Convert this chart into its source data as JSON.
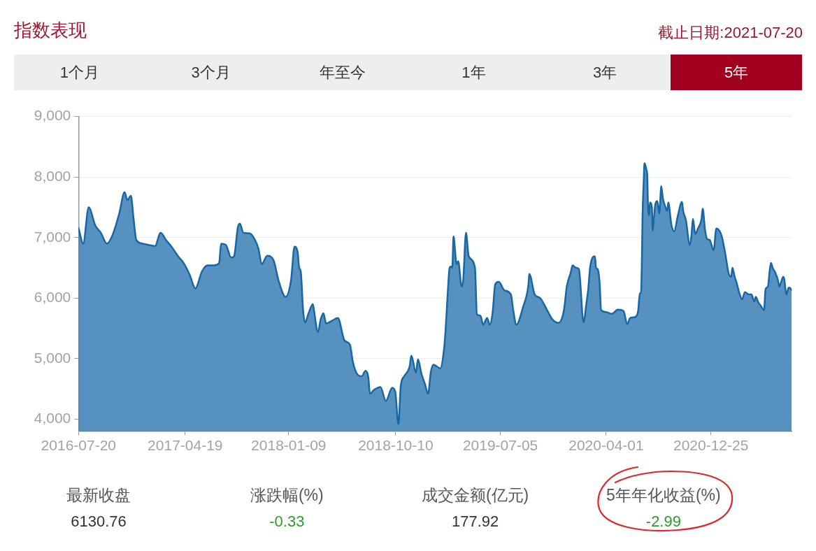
{
  "chart_data": [
    {
      "type": "area",
      "title": "指数表现",
      "annotations": [
        "截止日期:2021-07-20",
        "1个月",
        "3个月",
        "年至今",
        "1年",
        "3年",
        "5年"
      ],
      "x": [
        "2016-07-20",
        "2016-08-01",
        "2016-08-15",
        "2016-09-01",
        "2016-09-15",
        "2016-10-01",
        "2016-10-15",
        "2016-11-01",
        "2016-11-15",
        "2016-11-22",
        "2016-12-01",
        "2016-12-08",
        "2016-12-15",
        "2017-01-01",
        "2017-01-15",
        "2017-02-01",
        "2017-02-15",
        "2017-03-01",
        "2017-03-15",
        "2017-04-01",
        "2017-04-15",
        "2017-05-01",
        "2017-05-15",
        "2017-06-01",
        "2017-06-15",
        "2017-07-01",
        "2017-07-15",
        "2017-07-20",
        "2017-08-01",
        "2017-08-15",
        "2017-08-22",
        "2017-09-01",
        "2017-09-06",
        "2017-09-15",
        "2017-10-01",
        "2017-10-15",
        "2017-10-24",
        "2017-11-01",
        "2017-11-15",
        "2017-12-01",
        "2017-12-15",
        "2018-01-01",
        "2018-01-15",
        "2018-01-24",
        "2018-02-01",
        "2018-02-05",
        "2018-02-09",
        "2018-02-15",
        "2018-02-20",
        "2018-03-01",
        "2018-03-12",
        "2018-03-15",
        "2018-03-25",
        "2018-04-01",
        "2018-04-08",
        "2018-04-15",
        "2018-05-01",
        "2018-05-15",
        "2018-06-01",
        "2018-06-15",
        "2018-06-22",
        "2018-07-01",
        "2018-07-15",
        "2018-07-25",
        "2018-08-01",
        "2018-08-05",
        "2018-08-15",
        "2018-09-01",
        "2018-09-15",
        "2018-10-01",
        "2018-10-09",
        "2018-10-17",
        "2018-10-23",
        "2018-11-01",
        "2018-11-15",
        "2018-11-19",
        "2018-12-01",
        "2018-12-06",
        "2018-12-15",
        "2018-12-24",
        "2019-01-01",
        "2019-01-08",
        "2019-01-15",
        "2019-02-01",
        "2019-02-11",
        "2019-02-15",
        "2019-02-22",
        "2019-02-25",
        "2019-03-01",
        "2019-03-04",
        "2019-03-07",
        "2019-03-15",
        "2019-03-19",
        "2019-03-28",
        "2019-04-01",
        "2019-04-08",
        "2019-04-15",
        "2019-05-01",
        "2019-05-06",
        "2019-05-15",
        "2019-05-22",
        "2019-06-01",
        "2019-06-08",
        "2019-06-15",
        "2019-06-22",
        "2019-07-01",
        "2019-07-15",
        "2019-08-01",
        "2019-08-07",
        "2019-08-15",
        "2019-09-01",
        "2019-09-15",
        "2019-09-17",
        "2019-10-01",
        "2019-10-15",
        "2019-11-01",
        "2019-11-15",
        "2019-12-01",
        "2019-12-15",
        "2019-12-22",
        "2020-01-01",
        "2020-01-06",
        "2020-01-15",
        "2020-01-22",
        "2020-02-03",
        "2020-02-10",
        "2020-02-15",
        "2020-02-20",
        "2020-03-03",
        "2020-03-06",
        "2020-03-10",
        "2020-03-15",
        "2020-03-19",
        "2020-04-01",
        "2020-04-15",
        "2020-05-01",
        "2020-05-15",
        "2020-05-25",
        "2020-06-01",
        "2020-06-15",
        "2020-06-22",
        "2020-06-26",
        "2020-06-29",
        "2020-07-01",
        "2020-07-03",
        "2020-07-06",
        "2020-07-08",
        "2020-07-13",
        "2020-07-15",
        "2020-07-17",
        "2020-07-20",
        "2020-07-22",
        "2020-07-27",
        "2020-07-29",
        "2020-08-01",
        "2020-08-05",
        "2020-08-10",
        "2020-08-15",
        "2020-08-20",
        "2020-08-24",
        "2020-09-01",
        "2020-09-04",
        "2020-09-07",
        "2020-09-15",
        "2020-09-22",
        "2020-10-01",
        "2020-10-12",
        "2020-10-15",
        "2020-10-22",
        "2020-11-01",
        "2020-11-05",
        "2020-11-09",
        "2020-11-15",
        "2020-11-22",
        "2020-12-01",
        "2020-12-04",
        "2020-12-10",
        "2020-12-15",
        "2020-12-22",
        "2021-01-01",
        "2021-01-08",
        "2021-01-15",
        "2021-01-22",
        "2021-02-01",
        "2021-02-08",
        "2021-02-15",
        "2021-02-18",
        "2021-02-24",
        "2021-03-01",
        "2021-03-08",
        "2021-03-15",
        "2021-03-22",
        "2021-04-01",
        "2021-04-08",
        "2021-04-15",
        "2021-04-19",
        "2021-04-26",
        "2021-05-01",
        "2021-05-07",
        "2021-05-10",
        "2021-05-14",
        "2021-05-20",
        "2021-05-25",
        "2021-05-28",
        "2021-06-01",
        "2021-06-08",
        "2021-06-15",
        "2021-06-18",
        "2021-06-23",
        "2021-06-28",
        "2021-07-01",
        "2021-07-06",
        "2021-07-12",
        "2021-07-15",
        "2021-07-20"
      ],
      "values": [
        7160,
        6900,
        7500,
        7200,
        7080,
        6900,
        7040,
        7390,
        7750,
        7620,
        7690,
        7310,
        6960,
        6900,
        6880,
        6860,
        7080,
        6960,
        6850,
        6690,
        6580,
        6380,
        6160,
        6440,
        6540,
        6540,
        6580,
        6900,
        6880,
        6670,
        6690,
        7170,
        7230,
        7080,
        7070,
        6960,
        6810,
        6560,
        6700,
        6630,
        6270,
        6020,
        6290,
        6850,
        6760,
        6500,
        6440,
        5800,
        5600,
        5750,
        5900,
        5790,
        5440,
        5650,
        5750,
        5580,
        5630,
        5670,
        5300,
        5230,
        4960,
        4770,
        4710,
        4800,
        4690,
        4420,
        4480,
        4530,
        4300,
        4520,
        4450,
        3920,
        4550,
        4710,
        4880,
        5050,
        4770,
        4990,
        4750,
        4580,
        4420,
        4780,
        4900,
        4840,
        5170,
        5500,
        6270,
        6500,
        6520,
        6500,
        7020,
        6560,
        6610,
        6190,
        6300,
        7080,
        6690,
        6500,
        5730,
        5710,
        5560,
        5670,
        5560,
        5750,
        6230,
        6270,
        6130,
        6060,
        5800,
        5560,
        5850,
        6230,
        6400,
        6060,
        6000,
        5810,
        5650,
        5590,
        5810,
        6190,
        6420,
        6540,
        6500,
        6480,
        5600,
        5900,
        6150,
        6520,
        6690,
        6500,
        6480,
        6270,
        5800,
        5770,
        5740,
        5810,
        5790,
        5570,
        5670,
        5690,
        5800,
        6080,
        6080,
        6500,
        7350,
        7920,
        8230,
        8120,
        8040,
        7540,
        7370,
        7580,
        7500,
        7120,
        7310,
        7560,
        7600,
        7400,
        7850,
        7650,
        7480,
        7440,
        7580,
        7210,
        7100,
        7350,
        7590,
        7440,
        7290,
        6880,
        7020,
        7310,
        7060,
        7150,
        7310,
        7480,
        7130,
        6980,
        6960,
        6790,
        7150,
        7120,
        7020,
        6690,
        6420,
        6350,
        6500,
        6350,
        6250,
        6080,
        5980,
        6100,
        6060,
        6060,
        5940,
        6020,
        5920,
        5880,
        5820,
        5800,
        6150,
        6190,
        6480,
        6580,
        6500,
        6420,
        6290,
        6190,
        6270,
        6350,
        6310,
        6060,
        6170,
        6170,
        6130
      ],
      "color": "#1667a6",
      "xlim": [
        "2016-07-20",
        "2021-07-20"
      ],
      "xticks": [
        "2016-07-20",
        "2017-04-19",
        "2018-01-09",
        "2018-10-10",
        "2019-07-05",
        "2020-04-01",
        "2020-12-25"
      ],
      "ylim": [
        3800,
        9000
      ],
      "yticks": [
        {
          "value": 4000,
          "label": "4,000"
        },
        {
          "value": 5000,
          "label": "5,000"
        },
        {
          "value": 6000,
          "label": "6,000"
        },
        {
          "value": 7000,
          "label": "7,000"
        },
        {
          "value": 8000,
          "label": "8,000"
        },
        {
          "value": 9000,
          "label": "9,000"
        }
      ],
      "grid": "y"
    },
    {
      "type": "other",
      "categories": [
        "最新收盘",
        "涨跌幅(%)",
        "成交金额(亿元)",
        "5年年化收益(%)"
      ],
      "values": [
        6130.76,
        -0.33,
        177.92,
        -2.99
      ],
      "colors": [
        "#333333",
        "#2a9d2a",
        "#333333",
        "#2a9d2a"
      ],
      "data_labels": true
    }
  ]
}
